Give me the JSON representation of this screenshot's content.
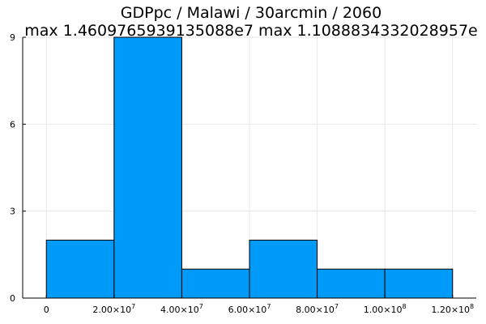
{
  "chart_data": {
    "type": "bar",
    "title": "GDPpc / Malawi / 30arcmin / 2060",
    "subtitle": "max 1.4609765939135088e7  max 1.1088834332028957e",
    "xlabel": "",
    "ylabel": "",
    "bin_edges": [
      0,
      20000000,
      40000000,
      60000000,
      80000000,
      100000000,
      120000000
    ],
    "values": [
      2,
      9,
      1,
      2,
      1,
      1
    ],
    "xlim": [
      -7000000,
      127000000
    ],
    "ylim": [
      0,
      9
    ],
    "x_ticks": [
      {
        "value": 0,
        "mantissa": "0",
        "exponent": ""
      },
      {
        "value": 20000000,
        "mantissa": "2.00×10",
        "exponent": "7"
      },
      {
        "value": 40000000,
        "mantissa": "4.00×10",
        "exponent": "7"
      },
      {
        "value": 60000000,
        "mantissa": "6.00×10",
        "exponent": "7"
      },
      {
        "value": 80000000,
        "mantissa": "8.00×10",
        "exponent": "7"
      },
      {
        "value": 100000000,
        "mantissa": "1.00×10",
        "exponent": "8"
      },
      {
        "value": 120000000,
        "mantissa": "1.20×10",
        "exponent": "8"
      }
    ],
    "y_ticks": [
      {
        "value": 0,
        "label": "0"
      },
      {
        "value": 3,
        "label": "3"
      },
      {
        "value": 6,
        "label": "6"
      },
      {
        "value": 9,
        "label": "9"
      }
    ],
    "grid": true,
    "legend": false,
    "bar_color": "#009af9",
    "edge_color": "#000000"
  }
}
